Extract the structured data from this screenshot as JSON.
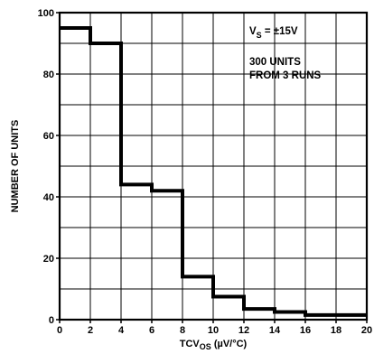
{
  "chart_data": {
    "type": "line",
    "step": true,
    "title": "",
    "xlabel": "TCVOS (µV/°C)",
    "xlabel_main": "TCV",
    "xlabel_sub": "OS",
    "xlabel_unit": " (µV/°C)",
    "ylabel": "NUMBER OF UNITS",
    "xlim": [
      0,
      20
    ],
    "ylim": [
      0,
      100
    ],
    "x_ticks": [
      0,
      2,
      4,
      6,
      8,
      10,
      12,
      14,
      16,
      18,
      20
    ],
    "x_tick_labels": [
      "0",
      "2",
      "4",
      "6",
      "8",
      "10",
      "12",
      "14",
      "16",
      "18",
      "20"
    ],
    "y_ticks": [
      0,
      20,
      40,
      60,
      80,
      100
    ],
    "y_tick_labels": [
      "0",
      "20",
      "40",
      "60",
      "80",
      "100"
    ],
    "grid": true,
    "series": [
      {
        "x": [
          0,
          2,
          2,
          4,
          4,
          6,
          6,
          8,
          8,
          10,
          10,
          12,
          12,
          14,
          14,
          16,
          16,
          20
        ],
        "y": [
          95,
          95,
          90,
          90,
          44,
          44,
          42,
          42,
          14,
          14,
          7.5,
          7.5,
          3.5,
          3.5,
          2.5,
          2.5,
          1.5,
          1.5
        ],
        "color": "#000000"
      }
    ],
    "annotations": {
      "supply_main": "V",
      "supply_sub": "S",
      "supply_rest": " = ±15V",
      "units_line1": "300 UNITS",
      "units_line2": "FROM 3 RUNS"
    }
  }
}
